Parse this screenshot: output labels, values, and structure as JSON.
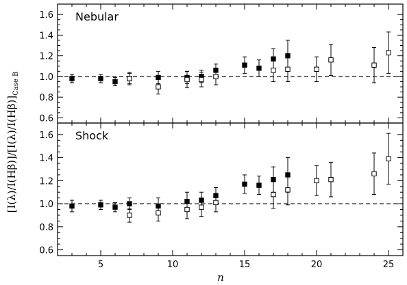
{
  "chart_data": {
    "type": "scatter",
    "xlabel": "n",
    "ylabel": "[I(λ)/I(Hβ)]/[I(λ)/I(Hβ)]",
    "ylabel_subscript": "Case B",
    "xlim": [
      2,
      26
    ],
    "ylim": [
      0.55,
      1.7
    ],
    "x_ticks": [
      5,
      10,
      15,
      20,
      25
    ],
    "y_ticks": [
      0.6,
      0.8,
      1.0,
      1.2,
      1.4,
      1.6
    ],
    "reference_y": 1.0,
    "panels": [
      {
        "label": "Nebular",
        "series": [
          {
            "marker": "filled-square",
            "points": [
              {
                "x": 3,
                "y": 0.98,
                "err": 0.04
              },
              {
                "x": 5,
                "y": 0.98,
                "err": 0.04
              },
              {
                "x": 6,
                "y": 0.95,
                "err": 0.04
              },
              {
                "x": 7,
                "y": 0.98,
                "err": 0.05
              },
              {
                "x": 9,
                "y": 0.99,
                "err": 0.06
              },
              {
                "x": 11,
                "y": 0.99,
                "err": 0.06
              },
              {
                "x": 12,
                "y": 1.0,
                "err": 0.06
              },
              {
                "x": 13,
                "y": 1.06,
                "err": 0.06
              },
              {
                "x": 15,
                "y": 1.11,
                "err": 0.08
              },
              {
                "x": 16,
                "y": 1.08,
                "err": 0.08
              },
              {
                "x": 17,
                "y": 1.17,
                "err": 0.1
              },
              {
                "x": 18,
                "y": 1.2,
                "err": 0.15
              }
            ]
          },
          {
            "marker": "open-square",
            "points": [
              {
                "x": 7,
                "y": 0.98,
                "err": 0.06
              },
              {
                "x": 9,
                "y": 0.9,
                "err": 0.07
              },
              {
                "x": 11,
                "y": 0.97,
                "err": 0.08
              },
              {
                "x": 12,
                "y": 0.97,
                "err": 0.07
              },
              {
                "x": 13,
                "y": 1.0,
                "err": 0.08
              },
              {
                "x": 17,
                "y": 1.06,
                "err": 0.11
              },
              {
                "x": 18,
                "y": 1.07,
                "err": 0.12
              },
              {
                "x": 20,
                "y": 1.07,
                "err": 0.12
              },
              {
                "x": 21,
                "y": 1.16,
                "err": 0.15
              },
              {
                "x": 24,
                "y": 1.11,
                "err": 0.17
              },
              {
                "x": 25,
                "y": 1.23,
                "err": 0.2
              }
            ]
          }
        ]
      },
      {
        "label": "Shock",
        "series": [
          {
            "marker": "filled-square",
            "points": [
              {
                "x": 3,
                "y": 0.98,
                "err": 0.05
              },
              {
                "x": 5,
                "y": 0.99,
                "err": 0.04
              },
              {
                "x": 6,
                "y": 0.97,
                "err": 0.04
              },
              {
                "x": 7,
                "y": 1.0,
                "err": 0.05
              },
              {
                "x": 9,
                "y": 0.98,
                "err": 0.07
              },
              {
                "x": 11,
                "y": 1.02,
                "err": 0.08
              },
              {
                "x": 12,
                "y": 1.03,
                "err": 0.07
              },
              {
                "x": 13,
                "y": 1.07,
                "err": 0.07
              },
              {
                "x": 15,
                "y": 1.17,
                "err": 0.08
              },
              {
                "x": 16,
                "y": 1.16,
                "err": 0.08
              },
              {
                "x": 17,
                "y": 1.21,
                "err": 0.11
              },
              {
                "x": 18,
                "y": 1.25,
                "err": 0.15
              }
            ]
          },
          {
            "marker": "open-square",
            "points": [
              {
                "x": 7,
                "y": 0.9,
                "err": 0.06
              },
              {
                "x": 9,
                "y": 0.92,
                "err": 0.07
              },
              {
                "x": 11,
                "y": 0.95,
                "err": 0.08
              },
              {
                "x": 12,
                "y": 0.97,
                "err": 0.08
              },
              {
                "x": 13,
                "y": 1.01,
                "err": 0.08
              },
              {
                "x": 17,
                "y": 1.08,
                "err": 0.12
              },
              {
                "x": 18,
                "y": 1.12,
                "err": 0.13
              },
              {
                "x": 20,
                "y": 1.2,
                "err": 0.13
              },
              {
                "x": 21,
                "y": 1.21,
                "err": 0.15
              },
              {
                "x": 24,
                "y": 1.26,
                "err": 0.18
              },
              {
                "x": 25,
                "y": 1.39,
                "err": 0.22
              }
            ]
          }
        ]
      }
    ]
  }
}
